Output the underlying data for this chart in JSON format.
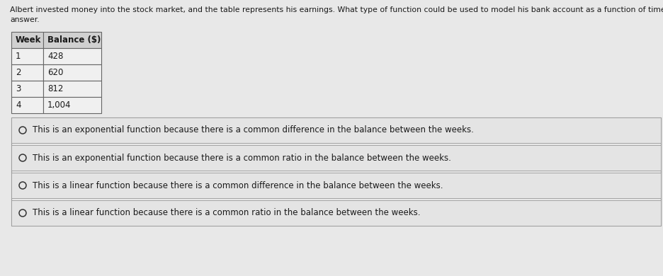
{
  "background_color": "#c8c8c8",
  "page_bg": "#e8e8e8",
  "question_line1": "Albert invested money into the stock market, and the table represents his earnings. What type of function could be used to model his bank account as a function of time? Justify your",
  "question_line2": "answer.",
  "table_headers": [
    "Week",
    "Balance ($)"
  ],
  "table_data": [
    [
      "1",
      "428"
    ],
    [
      "2",
      "620"
    ],
    [
      "3",
      "812"
    ],
    [
      "4",
      "1,004"
    ]
  ],
  "options": [
    "This is an exponential function because there is a common difference in the balance between the weeks.",
    "This is an exponential function because there is a common ratio in the balance between the weeks.",
    "This is a linear function because there is a common difference in the balance between the weeks.",
    "This is a linear function because there is a common ratio in the balance between the weeks."
  ],
  "question_fontsize": 7.8,
  "table_header_fontsize": 8.5,
  "table_fontsize": 8.5,
  "option_fontsize": 8.5,
  "text_color": "#1a1a1a",
  "table_border_color": "#666666",
  "table_header_bg": "#d0d0d0",
  "table_cell_bg": "#f0f0f0",
  "option_border_color": "#999999",
  "option_bg": "#e4e4e4",
  "option_separator_color": "#aaaaaa"
}
